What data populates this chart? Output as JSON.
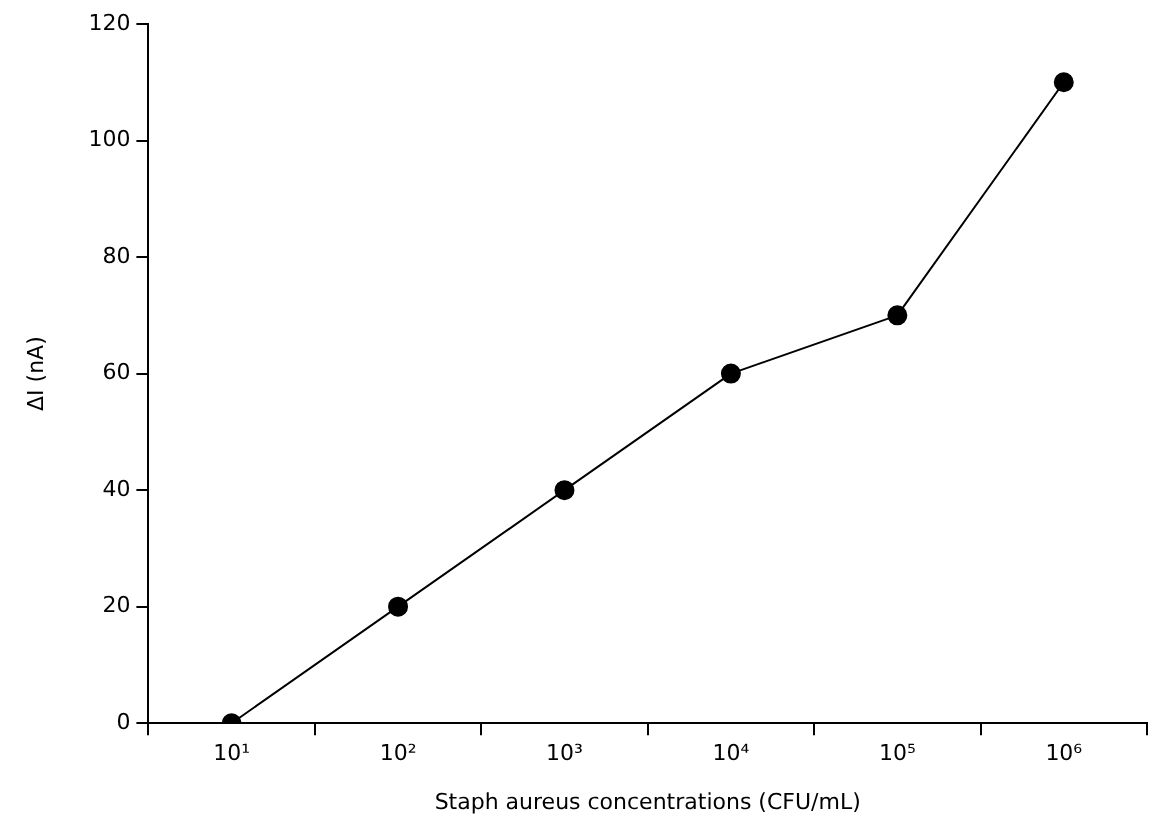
{
  "chart_data": {
    "type": "line",
    "xlabel": "Staph aureus concentrations (CFU/mL)",
    "ylabel": "ΔI (nA)",
    "categories": [
      "10¹",
      "10²",
      "10³",
      "10⁴",
      "10⁵",
      "10⁶"
    ],
    "series": [
      {
        "color": "#000000",
        "values": [
          0,
          20,
          40,
          60,
          70,
          110
        ]
      }
    ],
    "ylim": [
      0,
      120
    ],
    "yticks": [
      0,
      20,
      40,
      60,
      80,
      100,
      120
    ],
    "grid": false,
    "legend": false,
    "marker": "circle",
    "line_style": "solid"
  }
}
